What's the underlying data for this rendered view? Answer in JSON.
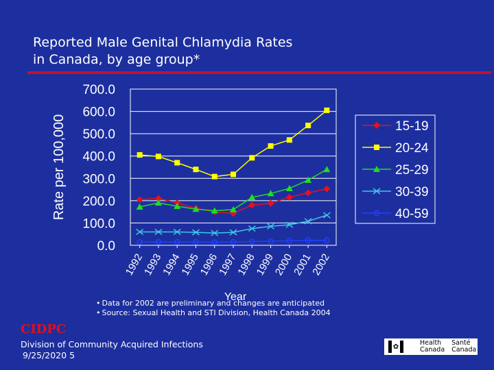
{
  "slide": {
    "title_line1": "Reported Male Genital Chlamydia Rates",
    "title_line2": "in Canada, by age group*",
    "note1": "Data for 2002 are preliminary and changes are anticipated",
    "note2": "Source:  Sexual Health and STI Division, Health Canada 2004",
    "org": "CIDPC",
    "footer_line1": "Division of Community Acquired Infections",
    "footer_line2": "9/25/2020 5",
    "logo_en_1": "Health",
    "logo_en_2": "Canada",
    "logo_fr_1": "Santé",
    "logo_fr_2": "Canada",
    "logo_icon": "maple-leaf-icon"
  },
  "colors": {
    "background": "#1d2f9e",
    "title_rule": "#c8102e",
    "org_text": "#e0101c"
  },
  "chart_data": {
    "type": "line",
    "title": "",
    "xlabel": "Year",
    "ylabel": "Rate per 100,000",
    "ylim": [
      0,
      700
    ],
    "yticks": [
      "0.0",
      "100.0",
      "200.0",
      "300.0",
      "400.0",
      "500.0",
      "600.0",
      "700.0"
    ],
    "categories": [
      "1992",
      "1993",
      "1994",
      "1995",
      "1996",
      "1997",
      "1998",
      "1999",
      "2000",
      "2001",
      "2002"
    ],
    "legend_position": "right",
    "series": [
      {
        "name": "15-19",
        "color": "#e8101c",
        "marker": "diamond",
        "values": [
          205,
          210,
          190,
          165,
          150,
          143,
          180,
          188,
          215,
          235,
          253
        ]
      },
      {
        "name": "20-24",
        "color": "#ffff00",
        "marker": "square",
        "values": [
          405,
          398,
          370,
          340,
          308,
          318,
          392,
          445,
          472,
          537,
          605
        ]
      },
      {
        "name": "25-29",
        "color": "#22dd22",
        "marker": "triangle",
        "values": [
          172,
          190,
          175,
          162,
          155,
          160,
          215,
          232,
          255,
          292,
          340
        ]
      },
      {
        "name": "30-39",
        "color": "#40c8e8",
        "marker": "x",
        "values": [
          60,
          60,
          60,
          58,
          55,
          58,
          75,
          85,
          92,
          108,
          135
        ]
      },
      {
        "name": "40-59",
        "color": "#2040ff",
        "marker": "circle",
        "values": [
          15,
          15,
          15,
          15,
          14,
          15,
          17,
          18,
          20,
          22,
          22
        ]
      }
    ]
  }
}
